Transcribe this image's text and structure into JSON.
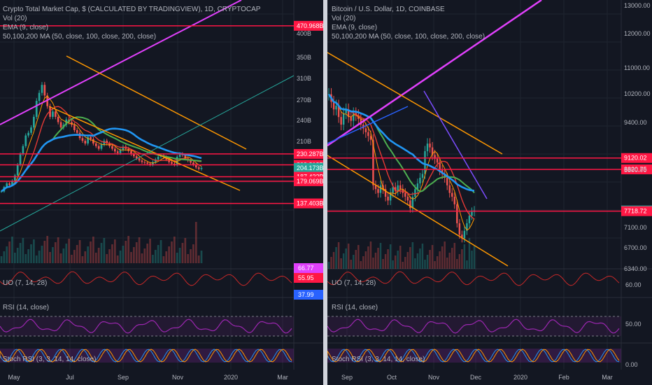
{
  "colors": {
    "background": "#131722",
    "grid": "#1f2430",
    "up": "#26a69a",
    "down": "#ef5350",
    "magenta": "#e040fb",
    "orange": "#ff9800",
    "teal": "#2e8b8b",
    "blue": "#2196f3",
    "green": "#4caf50",
    "red_ma": "#e53935",
    "red_level": "#ff1744",
    "purple": "#9c27b0"
  },
  "left": {
    "legend": [
      "Crypto Total Market Cap, $ (CALCULATED BY TRADINGVIEW), 1D, CRYPTOCAP",
      "Vol (20)",
      "EMA (9, close)",
      "50,100,200 MA (50, close, 100, close, 200, close)"
    ],
    "uo_label": "UO (7, 14, 28)",
    "rsi_label": "RSI (14, close)",
    "stoch_label": "Stoch RSI (3, 3, 14, 14, close)"
  },
  "right": {
    "legend": [
      "Bitcoin / U.S. Dollar, 1D, COINBASE",
      "Vol (20)",
      "EMA (9, close)",
      "50,100,200 MA (50, close, 100, close, 200, close)"
    ],
    "uo_label": "UO (7, 14, 28)",
    "rsi_label": "RSI (14, close)",
    "stoch_label": "Stoch RSI (3, 3, 14, 14, close)"
  },
  "chart_data": [
    {
      "type": "candlestick",
      "title": "Crypto Total Market Cap, $ (CALCULATED BY TRADINGVIEW), 1D, CRYPTOCAP",
      "x_ticks": [
        "May",
        "Jul",
        "Sep",
        "Nov",
        "2020",
        "Mar"
      ],
      "y_ticks": [
        "400B",
        "350B",
        "310B",
        "270B",
        "240B",
        "210B"
      ],
      "price_tags": [
        {
          "label": "470.968B",
          "value": 470.968,
          "color": "#ff1744"
        },
        {
          "label": "230.287B",
          "value": 230.287,
          "color": "#ff1744"
        },
        {
          "label": "209.818B",
          "value": 209.818,
          "color": "#ff1744"
        },
        {
          "label": "204.173B",
          "value": 204.173,
          "color": "#26a69a"
        },
        {
          "label": "187.432B",
          "value": 187.432,
          "color": "#ff1744"
        },
        {
          "label": "179.069B",
          "value": 179.069,
          "color": "#ff1744"
        },
        {
          "label": "137.403B",
          "value": 137.403,
          "color": "#ff1744"
        }
      ],
      "uo_tags": [
        {
          "label": "66.77",
          "color": "#e040fb"
        },
        {
          "label": "55.95",
          "color": "#ff1744"
        },
        {
          "label": "37.99",
          "color": "#2962ff"
        }
      ],
      "price_range": [
        125,
        480
      ],
      "close_approx": [
        160,
        168,
        175,
        172,
        180,
        190,
        210,
        230,
        245,
        265,
        270,
        280,
        300,
        330,
        345,
        360,
        340,
        320,
        300,
        310,
        300,
        290,
        280,
        285,
        295,
        290,
        285,
        275,
        270,
        260,
        255,
        250,
        262,
        258,
        250,
        245,
        240,
        248,
        255,
        250,
        245,
        240,
        235,
        232,
        238,
        244,
        240,
        236,
        230,
        226,
        222,
        218,
        215,
        214,
        212,
        210,
        215,
        220,
        225,
        228,
        224,
        220,
        215,
        212,
        210,
        225,
        230,
        228,
        222,
        218,
        214,
        210,
        205,
        202,
        204
      ]
    },
    {
      "type": "candlestick",
      "title": "Bitcoin / U.S. Dollar, 1D, COINBASE",
      "x_ticks": [
        "Sep",
        "Oct",
        "Nov",
        "Dec",
        "2020",
        "Feb",
        "Mar"
      ],
      "y_ticks": [
        "13000.00",
        "12000.00",
        "11000.00",
        "10200.00",
        "9400.00",
        "8300.00",
        "7100.00",
        "6700.00",
        "6340.00"
      ],
      "price_tags": [
        {
          "label": "9120.02",
          "value": 9120.02,
          "color": "#ff1744"
        },
        {
          "label": "8820.75",
          "value": 8820.75,
          "color": "#ff1744"
        },
        {
          "label": "7738.12",
          "value": 7738.12,
          "color": "#26a69a"
        },
        {
          "label": "7718.72",
          "value": 7718.72,
          "color": "#ff1744"
        }
      ],
      "osc_ticks": [
        "60.00",
        "50.00",
        "0.00"
      ],
      "price_range": [
        6200,
        13100
      ],
      "close_approx": [
        10800,
        10600,
        10400,
        10500,
        10200,
        10000,
        10300,
        10400,
        10200,
        10100,
        10300,
        10250,
        10150,
        10000,
        9900,
        9800,
        9700,
        9600,
        8400,
        8300,
        8200,
        8400,
        8300,
        8100,
        8000,
        8200,
        8350,
        8250,
        8400,
        8300,
        8200,
        8100,
        8000,
        7800,
        8100,
        8300,
        8450,
        8600,
        8700,
        9300,
        9500,
        9400,
        9200,
        9100,
        9000,
        8800,
        8700,
        8600,
        8400,
        8200,
        8100,
        7900,
        7400,
        7100,
        7000,
        7200,
        7400,
        7600,
        7700,
        7738
      ]
    }
  ]
}
